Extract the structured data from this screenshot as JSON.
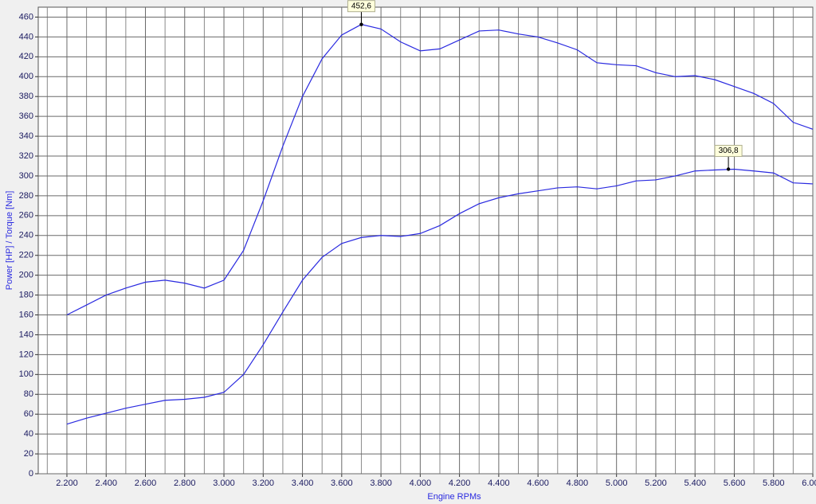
{
  "chart_data": {
    "type": "line",
    "xlabel": "Engine RPMs",
    "ylabel": "Power [HP] / Torque [Nm]",
    "x": [
      2200,
      2300,
      2400,
      2500,
      2600,
      2700,
      2800,
      2900,
      3000,
      3100,
      3200,
      3300,
      3400,
      3500,
      3600,
      3700,
      3800,
      3900,
      4000,
      4100,
      4200,
      4300,
      4400,
      4500,
      4600,
      4700,
      4800,
      4900,
      5000,
      5100,
      5200,
      5300,
      5400,
      5500,
      5600,
      5700,
      5800,
      5900,
      6000
    ],
    "series": [
      {
        "color": "#2a2ae0",
        "values": [
          160,
          170,
          180,
          187,
          193,
          195,
          192,
          187,
          195,
          225,
          275,
          330,
          380,
          418,
          442,
          452.6,
          448,
          435,
          426,
          428,
          437,
          446,
          447,
          443,
          440,
          434,
          427,
          414,
          412,
          411,
          404,
          400,
          401,
          397,
          390,
          383,
          373,
          354,
          347
        ]
      },
      {
        "color": "#2a2ae0",
        "values": [
          50,
          56,
          61,
          66,
          70,
          74,
          75,
          77,
          82,
          100,
          130,
          163,
          195,
          218,
          232,
          238,
          240,
          239,
          242,
          250,
          262,
          272,
          278,
          282,
          285,
          288,
          289,
          287,
          290,
          295,
          296,
          300,
          305,
          306,
          306.8,
          305,
          303,
          293,
          292
        ]
      }
    ],
    "annotations": [
      {
        "x": 3700,
        "y": 452.6,
        "label": "452,6"
      },
      {
        "x": 5570,
        "y": 306.8,
        "label": "306,8"
      }
    ],
    "xlim": [
      2054,
      6000
    ],
    "ylim": [
      0,
      470
    ],
    "xticks": [
      {
        "value": 2200,
        "label": "2.200"
      },
      {
        "value": 2400,
        "label": "2.400"
      },
      {
        "value": 2600,
        "label": "2.600"
      },
      {
        "value": 2800,
        "label": "2.800"
      },
      {
        "value": 3000,
        "label": "3.000"
      },
      {
        "value": 3200,
        "label": "3.200"
      },
      {
        "value": 3400,
        "label": "3.400"
      },
      {
        "value": 3600,
        "label": "3.600"
      },
      {
        "value": 3800,
        "label": "3.800"
      },
      {
        "value": 4000,
        "label": "4.000"
      },
      {
        "value": 4200,
        "label": "4.200"
      },
      {
        "value": 4400,
        "label": "4.400"
      },
      {
        "value": 4600,
        "label": "4.600"
      },
      {
        "value": 4800,
        "label": "4.800"
      },
      {
        "value": 5000,
        "label": "5.000"
      },
      {
        "value": 5200,
        "label": "5.200"
      },
      {
        "value": 5400,
        "label": "5.400"
      },
      {
        "value": 5600,
        "label": "5.600"
      },
      {
        "value": 5800,
        "label": "5.800"
      },
      {
        "value": 6000,
        "label": "6.000"
      }
    ],
    "xminorticks": [
      2100,
      2300,
      2500,
      2700,
      2900,
      3100,
      3300,
      3500,
      3700,
      3900,
      4100,
      4300,
      4500,
      4700,
      4900,
      5100,
      5300,
      5500,
      5700,
      5900
    ],
    "yticks": [
      0,
      20,
      40,
      60,
      80,
      100,
      120,
      140,
      160,
      180,
      200,
      220,
      240,
      260,
      280,
      300,
      320,
      340,
      360,
      380,
      400,
      420,
      440,
      460
    ],
    "grid": true
  }
}
